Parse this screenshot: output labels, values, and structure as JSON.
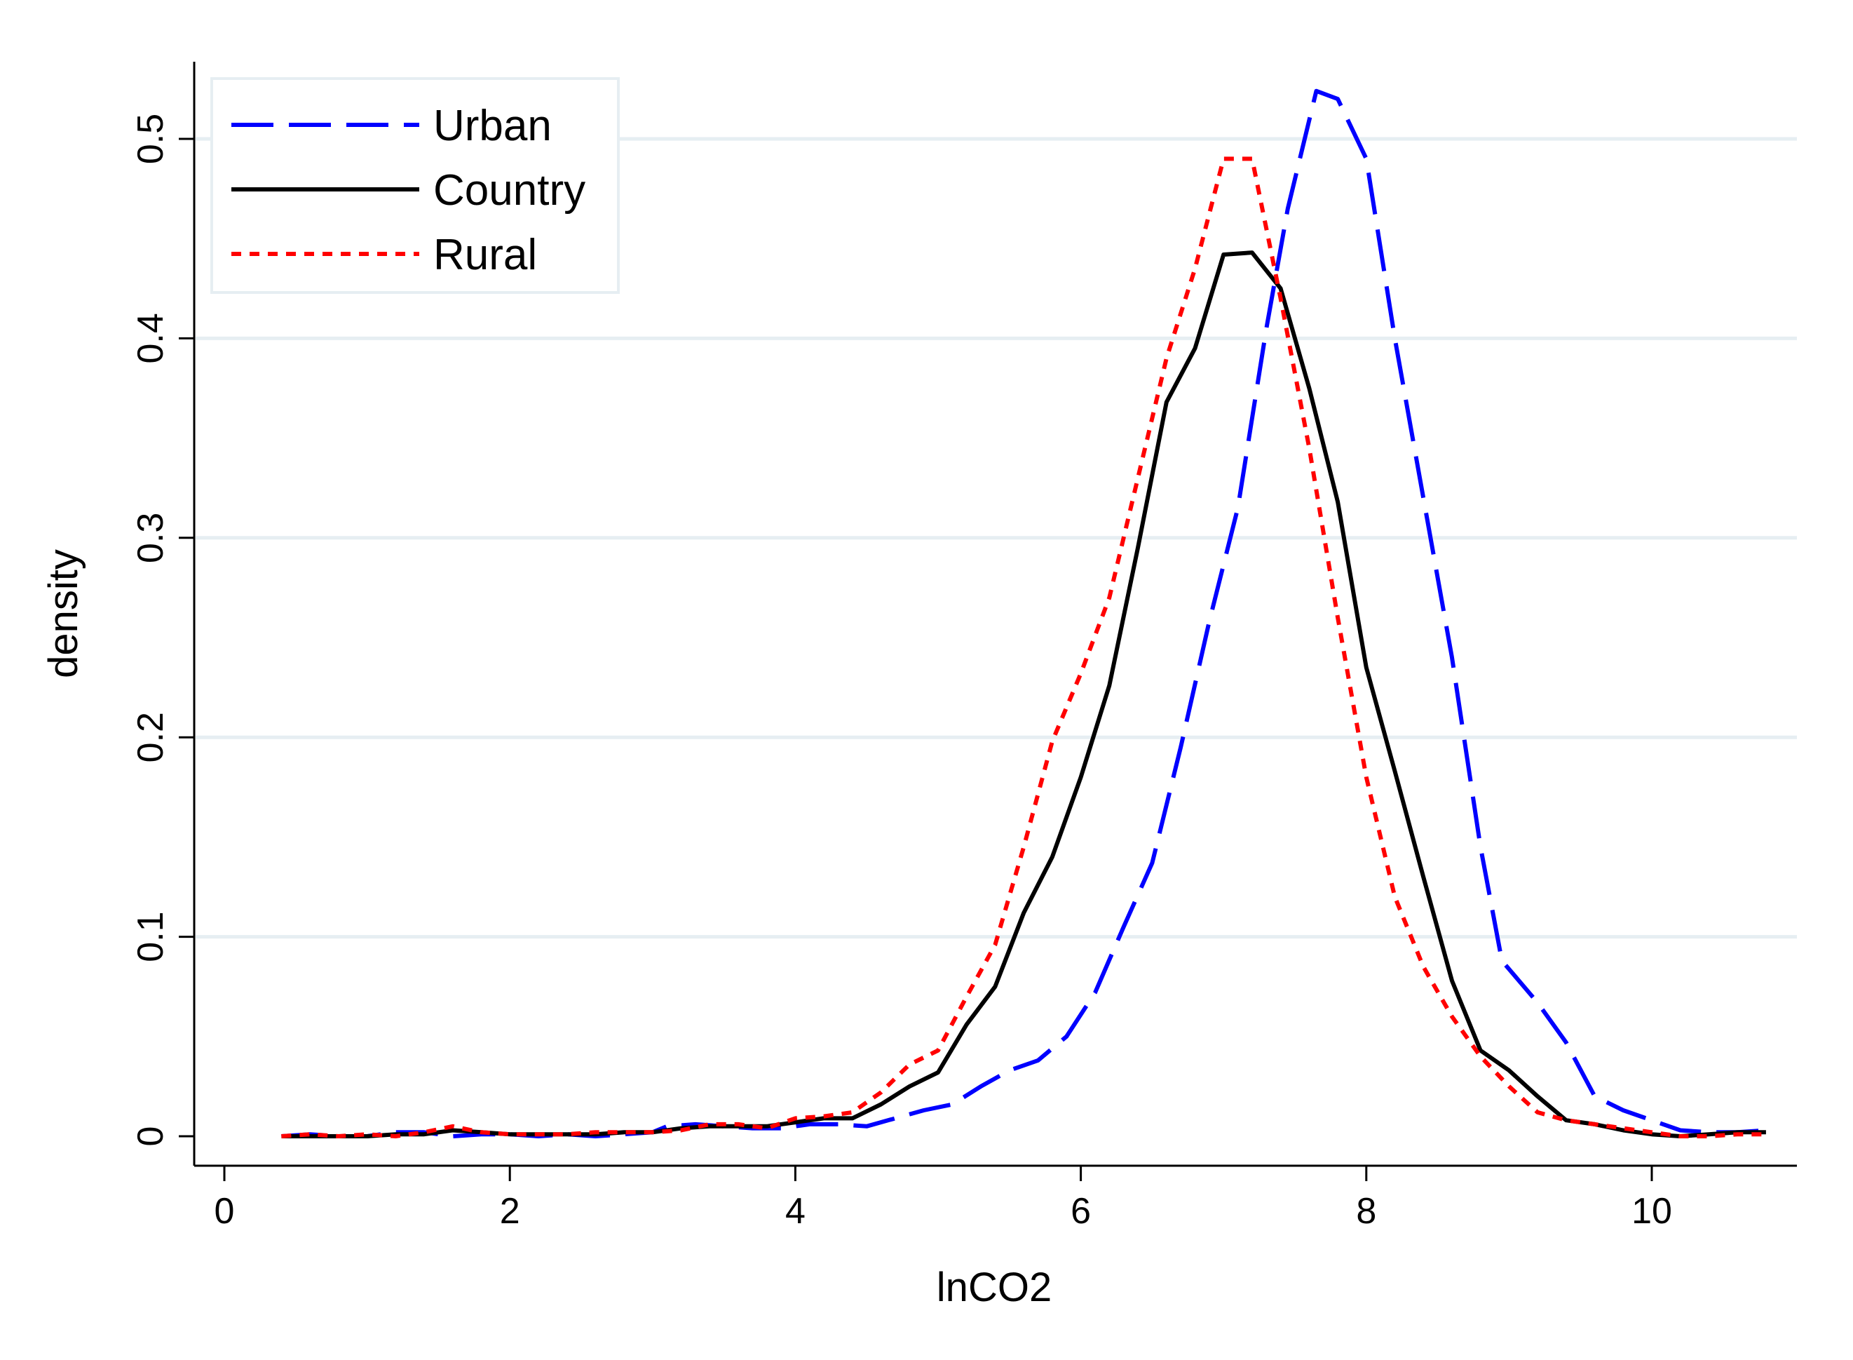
{
  "chart_data": {
    "type": "line",
    "title": "",
    "xlabel": "lnCO2",
    "ylabel": "density",
    "xlim": [
      0,
      11
    ],
    "ylim": [
      0,
      0.55
    ],
    "xticks": [
      0,
      2,
      4,
      6,
      8,
      10
    ],
    "xtick_labels": [
      "0",
      "2",
      "4",
      "6",
      "8",
      "10"
    ],
    "yticks": [
      0,
      0.1,
      0.2,
      0.3,
      0.4,
      0.5
    ],
    "ytick_labels": [
      "0",
      "0.1",
      "0.2",
      "0.3",
      "0.4",
      "0.5"
    ],
    "grid": "horizontal",
    "legend_position": "top-left",
    "series": [
      {
        "name": "Urban",
        "style": "dashed",
        "color": "#0000ff",
        "points": [
          [
            0.4,
            0.0
          ],
          [
            0.6,
            0.001
          ],
          [
            0.8,
            0.0
          ],
          [
            1.0,
            0.0
          ],
          [
            1.2,
            0.002
          ],
          [
            1.4,
            0.002
          ],
          [
            1.6,
            0.0
          ],
          [
            1.8,
            0.001
          ],
          [
            2.0,
            0.001
          ],
          [
            2.2,
            0.0
          ],
          [
            2.4,
            0.001
          ],
          [
            2.6,
            0.0
          ],
          [
            2.8,
            0.001
          ],
          [
            3.0,
            0.002
          ],
          [
            3.1,
            0.005
          ],
          [
            3.3,
            0.006
          ],
          [
            3.5,
            0.005
          ],
          [
            3.7,
            0.004
          ],
          [
            3.9,
            0.004
          ],
          [
            4.1,
            0.006
          ],
          [
            4.3,
            0.006
          ],
          [
            4.5,
            0.005
          ],
          [
            4.7,
            0.009
          ],
          [
            4.9,
            0.013
          ],
          [
            5.1,
            0.016
          ],
          [
            5.3,
            0.025
          ],
          [
            5.5,
            0.033
          ],
          [
            5.7,
            0.038
          ],
          [
            5.9,
            0.05
          ],
          [
            6.1,
            0.072
          ],
          [
            6.3,
            0.105
          ],
          [
            6.5,
            0.137
          ],
          [
            6.7,
            0.195
          ],
          [
            6.9,
            0.258
          ],
          [
            7.1,
            0.315
          ],
          [
            7.3,
            0.405
          ],
          [
            7.45,
            0.465
          ],
          [
            7.65,
            0.524
          ],
          [
            7.8,
            0.52
          ],
          [
            8.0,
            0.49
          ],
          [
            8.2,
            0.4
          ],
          [
            8.4,
            0.32
          ],
          [
            8.6,
            0.24
          ],
          [
            8.8,
            0.145
          ],
          [
            8.95,
            0.088
          ],
          [
            9.2,
            0.067
          ],
          [
            9.4,
            0.047
          ],
          [
            9.6,
            0.02
          ],
          [
            9.8,
            0.013
          ],
          [
            10.0,
            0.008
          ],
          [
            10.2,
            0.003
          ],
          [
            10.4,
            0.002
          ],
          [
            10.6,
            0.002
          ],
          [
            10.8,
            0.003
          ]
        ]
      },
      {
        "name": "Country",
        "style": "solid",
        "color": "#000000",
        "points": [
          [
            0.4,
            0.0
          ],
          [
            0.6,
            0.0
          ],
          [
            0.8,
            0.0
          ],
          [
            1.0,
            0.0
          ],
          [
            1.2,
            0.001
          ],
          [
            1.4,
            0.001
          ],
          [
            1.6,
            0.003
          ],
          [
            1.8,
            0.002
          ],
          [
            2.0,
            0.001
          ],
          [
            2.2,
            0.001
          ],
          [
            2.4,
            0.001
          ],
          [
            2.6,
            0.001
          ],
          [
            2.8,
            0.002
          ],
          [
            3.0,
            0.002
          ],
          [
            3.2,
            0.004
          ],
          [
            3.4,
            0.005
          ],
          [
            3.6,
            0.005
          ],
          [
            3.8,
            0.005
          ],
          [
            4.0,
            0.007
          ],
          [
            4.2,
            0.009
          ],
          [
            4.4,
            0.009
          ],
          [
            4.6,
            0.016
          ],
          [
            4.8,
            0.025
          ],
          [
            5.0,
            0.032
          ],
          [
            5.2,
            0.056
          ],
          [
            5.4,
            0.075
          ],
          [
            5.6,
            0.112
          ],
          [
            5.8,
            0.14
          ],
          [
            6.0,
            0.18
          ],
          [
            6.2,
            0.226
          ],
          [
            6.4,
            0.295
          ],
          [
            6.6,
            0.368
          ],
          [
            6.8,
            0.395
          ],
          [
            7.0,
            0.442
          ],
          [
            7.2,
            0.443
          ],
          [
            7.4,
            0.425
          ],
          [
            7.6,
            0.375
          ],
          [
            7.8,
            0.318
          ],
          [
            8.0,
            0.235
          ],
          [
            8.2,
            0.183
          ],
          [
            8.4,
            0.13
          ],
          [
            8.6,
            0.078
          ],
          [
            8.8,
            0.043
          ],
          [
            9.0,
            0.033
          ],
          [
            9.2,
            0.02
          ],
          [
            9.4,
            0.008
          ],
          [
            9.6,
            0.006
          ],
          [
            9.8,
            0.003
          ],
          [
            10.0,
            0.001
          ],
          [
            10.2,
            0.0
          ],
          [
            10.4,
            0.001
          ],
          [
            10.6,
            0.002
          ],
          [
            10.8,
            0.002
          ]
        ]
      },
      {
        "name": "Rural",
        "style": "dotted",
        "color": "#ff0000",
        "points": [
          [
            0.4,
            0.0
          ],
          [
            0.6,
            0.001
          ],
          [
            0.8,
            0.0
          ],
          [
            1.0,
            0.001
          ],
          [
            1.2,
            0.0
          ],
          [
            1.4,
            0.002
          ],
          [
            1.6,
            0.005
          ],
          [
            1.8,
            0.002
          ],
          [
            2.0,
            0.001
          ],
          [
            2.2,
            0.001
          ],
          [
            2.4,
            0.001
          ],
          [
            2.6,
            0.002
          ],
          [
            2.8,
            0.002
          ],
          [
            3.0,
            0.002
          ],
          [
            3.2,
            0.003
          ],
          [
            3.4,
            0.006
          ],
          [
            3.6,
            0.006
          ],
          [
            3.8,
            0.004
          ],
          [
            4.0,
            0.009
          ],
          [
            4.2,
            0.01
          ],
          [
            4.4,
            0.012
          ],
          [
            4.6,
            0.022
          ],
          [
            4.8,
            0.036
          ],
          [
            5.0,
            0.043
          ],
          [
            5.2,
            0.07
          ],
          [
            5.4,
            0.096
          ],
          [
            5.6,
            0.145
          ],
          [
            5.8,
            0.198
          ],
          [
            6.0,
            0.232
          ],
          [
            6.2,
            0.27
          ],
          [
            6.4,
            0.33
          ],
          [
            6.6,
            0.39
          ],
          [
            6.8,
            0.435
          ],
          [
            7.0,
            0.49
          ],
          [
            7.2,
            0.49
          ],
          [
            7.4,
            0.42
          ],
          [
            7.6,
            0.345
          ],
          [
            7.8,
            0.26
          ],
          [
            8.0,
            0.18
          ],
          [
            8.2,
            0.12
          ],
          [
            8.4,
            0.085
          ],
          [
            8.6,
            0.06
          ],
          [
            8.8,
            0.04
          ],
          [
            9.0,
            0.025
          ],
          [
            9.2,
            0.012
          ],
          [
            9.4,
            0.008
          ],
          [
            9.6,
            0.006
          ],
          [
            9.8,
            0.004
          ],
          [
            10.0,
            0.002
          ],
          [
            10.2,
            0.0
          ],
          [
            10.4,
            0.0
          ],
          [
            10.6,
            0.001
          ],
          [
            10.8,
            0.001
          ]
        ]
      }
    ]
  }
}
